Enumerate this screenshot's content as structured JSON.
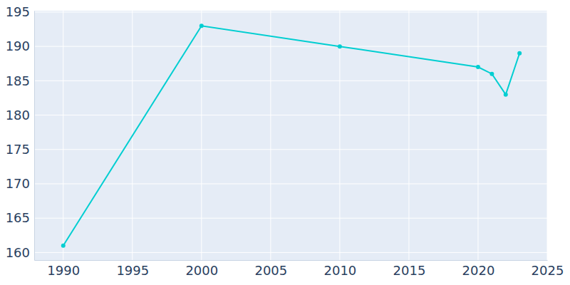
{
  "chart_data": {
    "type": "line",
    "x": [
      1990,
      2000,
      2010,
      2020,
      2021,
      2022,
      2023
    ],
    "values": [
      161,
      193,
      190,
      187,
      186,
      183,
      189
    ],
    "color": "#00ced1",
    "marker": "circle",
    "line_style": "solid",
    "xlim": [
      1987.9,
      2025
    ],
    "xticks": [
      1990,
      1995,
      2000,
      2005,
      2010,
      2015,
      2020,
      2025
    ],
    "ylim": [
      158.9,
      195.2
    ],
    "yticks": [
      160,
      165,
      170,
      175,
      180,
      185,
      190,
      195
    ],
    "grid": true
  }
}
